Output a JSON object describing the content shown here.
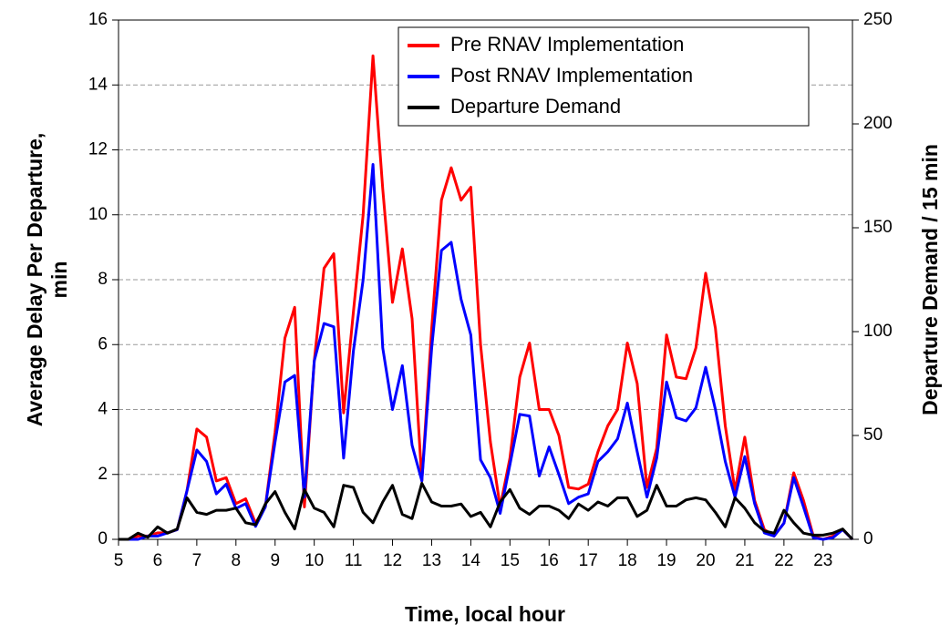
{
  "chart_data": {
    "type": "line",
    "x_label": "Time, local hour",
    "y_label": [
      "Average Delay Per Departure,",
      "min"
    ],
    "y2_label": "Departure Demand / 15 min",
    "x": [
      5,
      5.25,
      5.5,
      5.75,
      6,
      6.25,
      6.5,
      6.75,
      7,
      7.25,
      7.5,
      7.75,
      8,
      8.25,
      8.5,
      8.75,
      9,
      9.25,
      9.5,
      9.75,
      10,
      10.25,
      10.5,
      10.75,
      11,
      11.25,
      11.5,
      11.75,
      12,
      12.25,
      12.5,
      12.75,
      13,
      13.25,
      13.5,
      13.75,
      14,
      14.25,
      14.5,
      14.75,
      15,
      15.25,
      15.5,
      15.75,
      16,
      16.25,
      16.5,
      16.75,
      17,
      17.25,
      17.5,
      17.75,
      18,
      18.25,
      18.5,
      18.75,
      19,
      19.25,
      19.5,
      19.75,
      20,
      20.25,
      20.5,
      20.75,
      21,
      21.25,
      21.5,
      21.75,
      22,
      22.25,
      22.5,
      22.75,
      23,
      23.25,
      23.5,
      23.75
    ],
    "series": [
      {
        "name": "Pre RNAV Implementation",
        "color": "#ff0000",
        "values": [
          0,
          0,
          0.1,
          0.1,
          0.2,
          0.2,
          0.3,
          1.5,
          3.4,
          3.15,
          1.8,
          1.9,
          1.1,
          1.25,
          0.5,
          1.0,
          3.3,
          6.2,
          7.15,
          1.0,
          5.5,
          8.35,
          8.8,
          3.9,
          7.0,
          10.0,
          14.9,
          10.8,
          7.3,
          8.95,
          6.8,
          1.8,
          6.5,
          10.45,
          11.45,
          10.45,
          10.85,
          6.0,
          3.0,
          1.0,
          2.5,
          5.0,
          6.05,
          4.0,
          4.0,
          3.2,
          1.6,
          1.55,
          1.7,
          2.7,
          3.5,
          4.0,
          6.05,
          4.8,
          1.6,
          2.8,
          6.3,
          5.0,
          4.95,
          5.9,
          8.2,
          6.5,
          3.5,
          1.5,
          3.15,
          1.2,
          0.3,
          0.1,
          0.5,
          2.05,
          1.2,
          0.1,
          0,
          0.1,
          0.3,
          0
        ]
      },
      {
        "name": "Post RNAV Implementation",
        "color": "#0000ff",
        "values": [
          0,
          0,
          0,
          0.1,
          0.1,
          0.2,
          0.3,
          1.5,
          2.75,
          2.4,
          1.4,
          1.7,
          0.95,
          1.1,
          0.4,
          1.0,
          3.0,
          4.85,
          5.05,
          1.3,
          5.5,
          6.65,
          6.55,
          2.5,
          5.8,
          8.0,
          11.55,
          5.9,
          4.0,
          5.35,
          2.9,
          1.8,
          5.9,
          8.9,
          9.15,
          7.4,
          6.3,
          2.45,
          1.9,
          0.8,
          2.3,
          3.85,
          3.8,
          1.95,
          2.85,
          2.0,
          1.1,
          1.3,
          1.4,
          2.4,
          2.7,
          3.1,
          4.2,
          2.7,
          1.3,
          2.5,
          4.85,
          3.75,
          3.65,
          4.05,
          5.3,
          4.0,
          2.4,
          1.3,
          2.55,
          1.1,
          0.2,
          0.1,
          0.5,
          1.9,
          1.0,
          0.05,
          0,
          0.05,
          0.3,
          0
        ]
      },
      {
        "name": "Departure Demand",
        "color": "#000000",
        "axis": "y2",
        "values": [
          0,
          0,
          3,
          1,
          6,
          3,
          5,
          20,
          13,
          12,
          14,
          14,
          15,
          8,
          7,
          17,
          23,
          13,
          5,
          24,
          15,
          13,
          6,
          26,
          25,
          13,
          8,
          18,
          26,
          12,
          10,
          27,
          18,
          16,
          16,
          17,
          11,
          13,
          6,
          18,
          24,
          15,
          12,
          16,
          16,
          14,
          10,
          17,
          14,
          18,
          16,
          20,
          20,
          11,
          14,
          26,
          16,
          16,
          19,
          20,
          19,
          13,
          6,
          20,
          15,
          8,
          4,
          3,
          14,
          8,
          3,
          2,
          2,
          3,
          5,
          0
        ]
      }
    ],
    "xlim": [
      5,
      23.75
    ],
    "xticks": [
      5,
      6,
      7,
      8,
      9,
      10,
      11,
      12,
      13,
      14,
      15,
      16,
      17,
      18,
      19,
      20,
      21,
      22,
      23
    ],
    "ylim": [
      0,
      16
    ],
    "yticks": [
      0,
      2,
      4,
      6,
      8,
      10,
      12,
      14,
      16
    ],
    "y2lim": [
      0,
      250
    ],
    "y2ticks": [
      0,
      50,
      100,
      150,
      200,
      250
    ],
    "grid": true,
    "legend": "top-right"
  }
}
